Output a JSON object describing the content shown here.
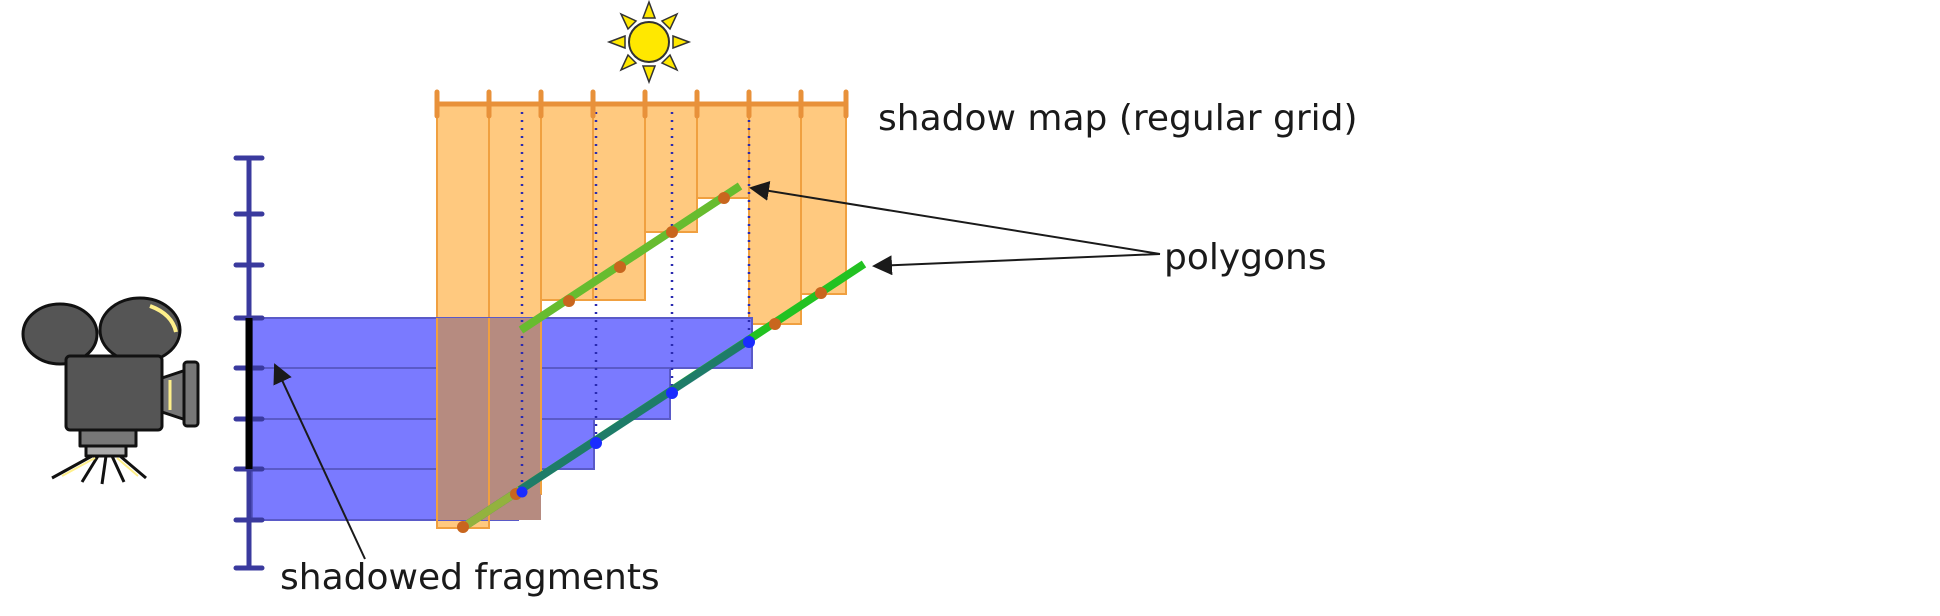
{
  "labels": {
    "shadow_map": "shadow map (regular grid)",
    "polygons": "polygons",
    "shadowed_fragments": "shadowed fragments"
  },
  "colors": {
    "shadow_map_bar": "#E8913A",
    "shadow_map_fill": "#FFC97F",
    "screen_axis": "#3A3A9E",
    "fragment_fill": "#7A7AFF",
    "fragment_edge": "#5A5AC8",
    "overlap_fill": "#B68B80",
    "polygon_line": "#22C222",
    "sample_dot_orange": "#C8661E",
    "sample_dot_blue": "#1A2CFF",
    "sun_fill": "#FFE800"
  },
  "icons": {
    "light_source": "sun-icon",
    "camera": "camera-icon"
  }
}
